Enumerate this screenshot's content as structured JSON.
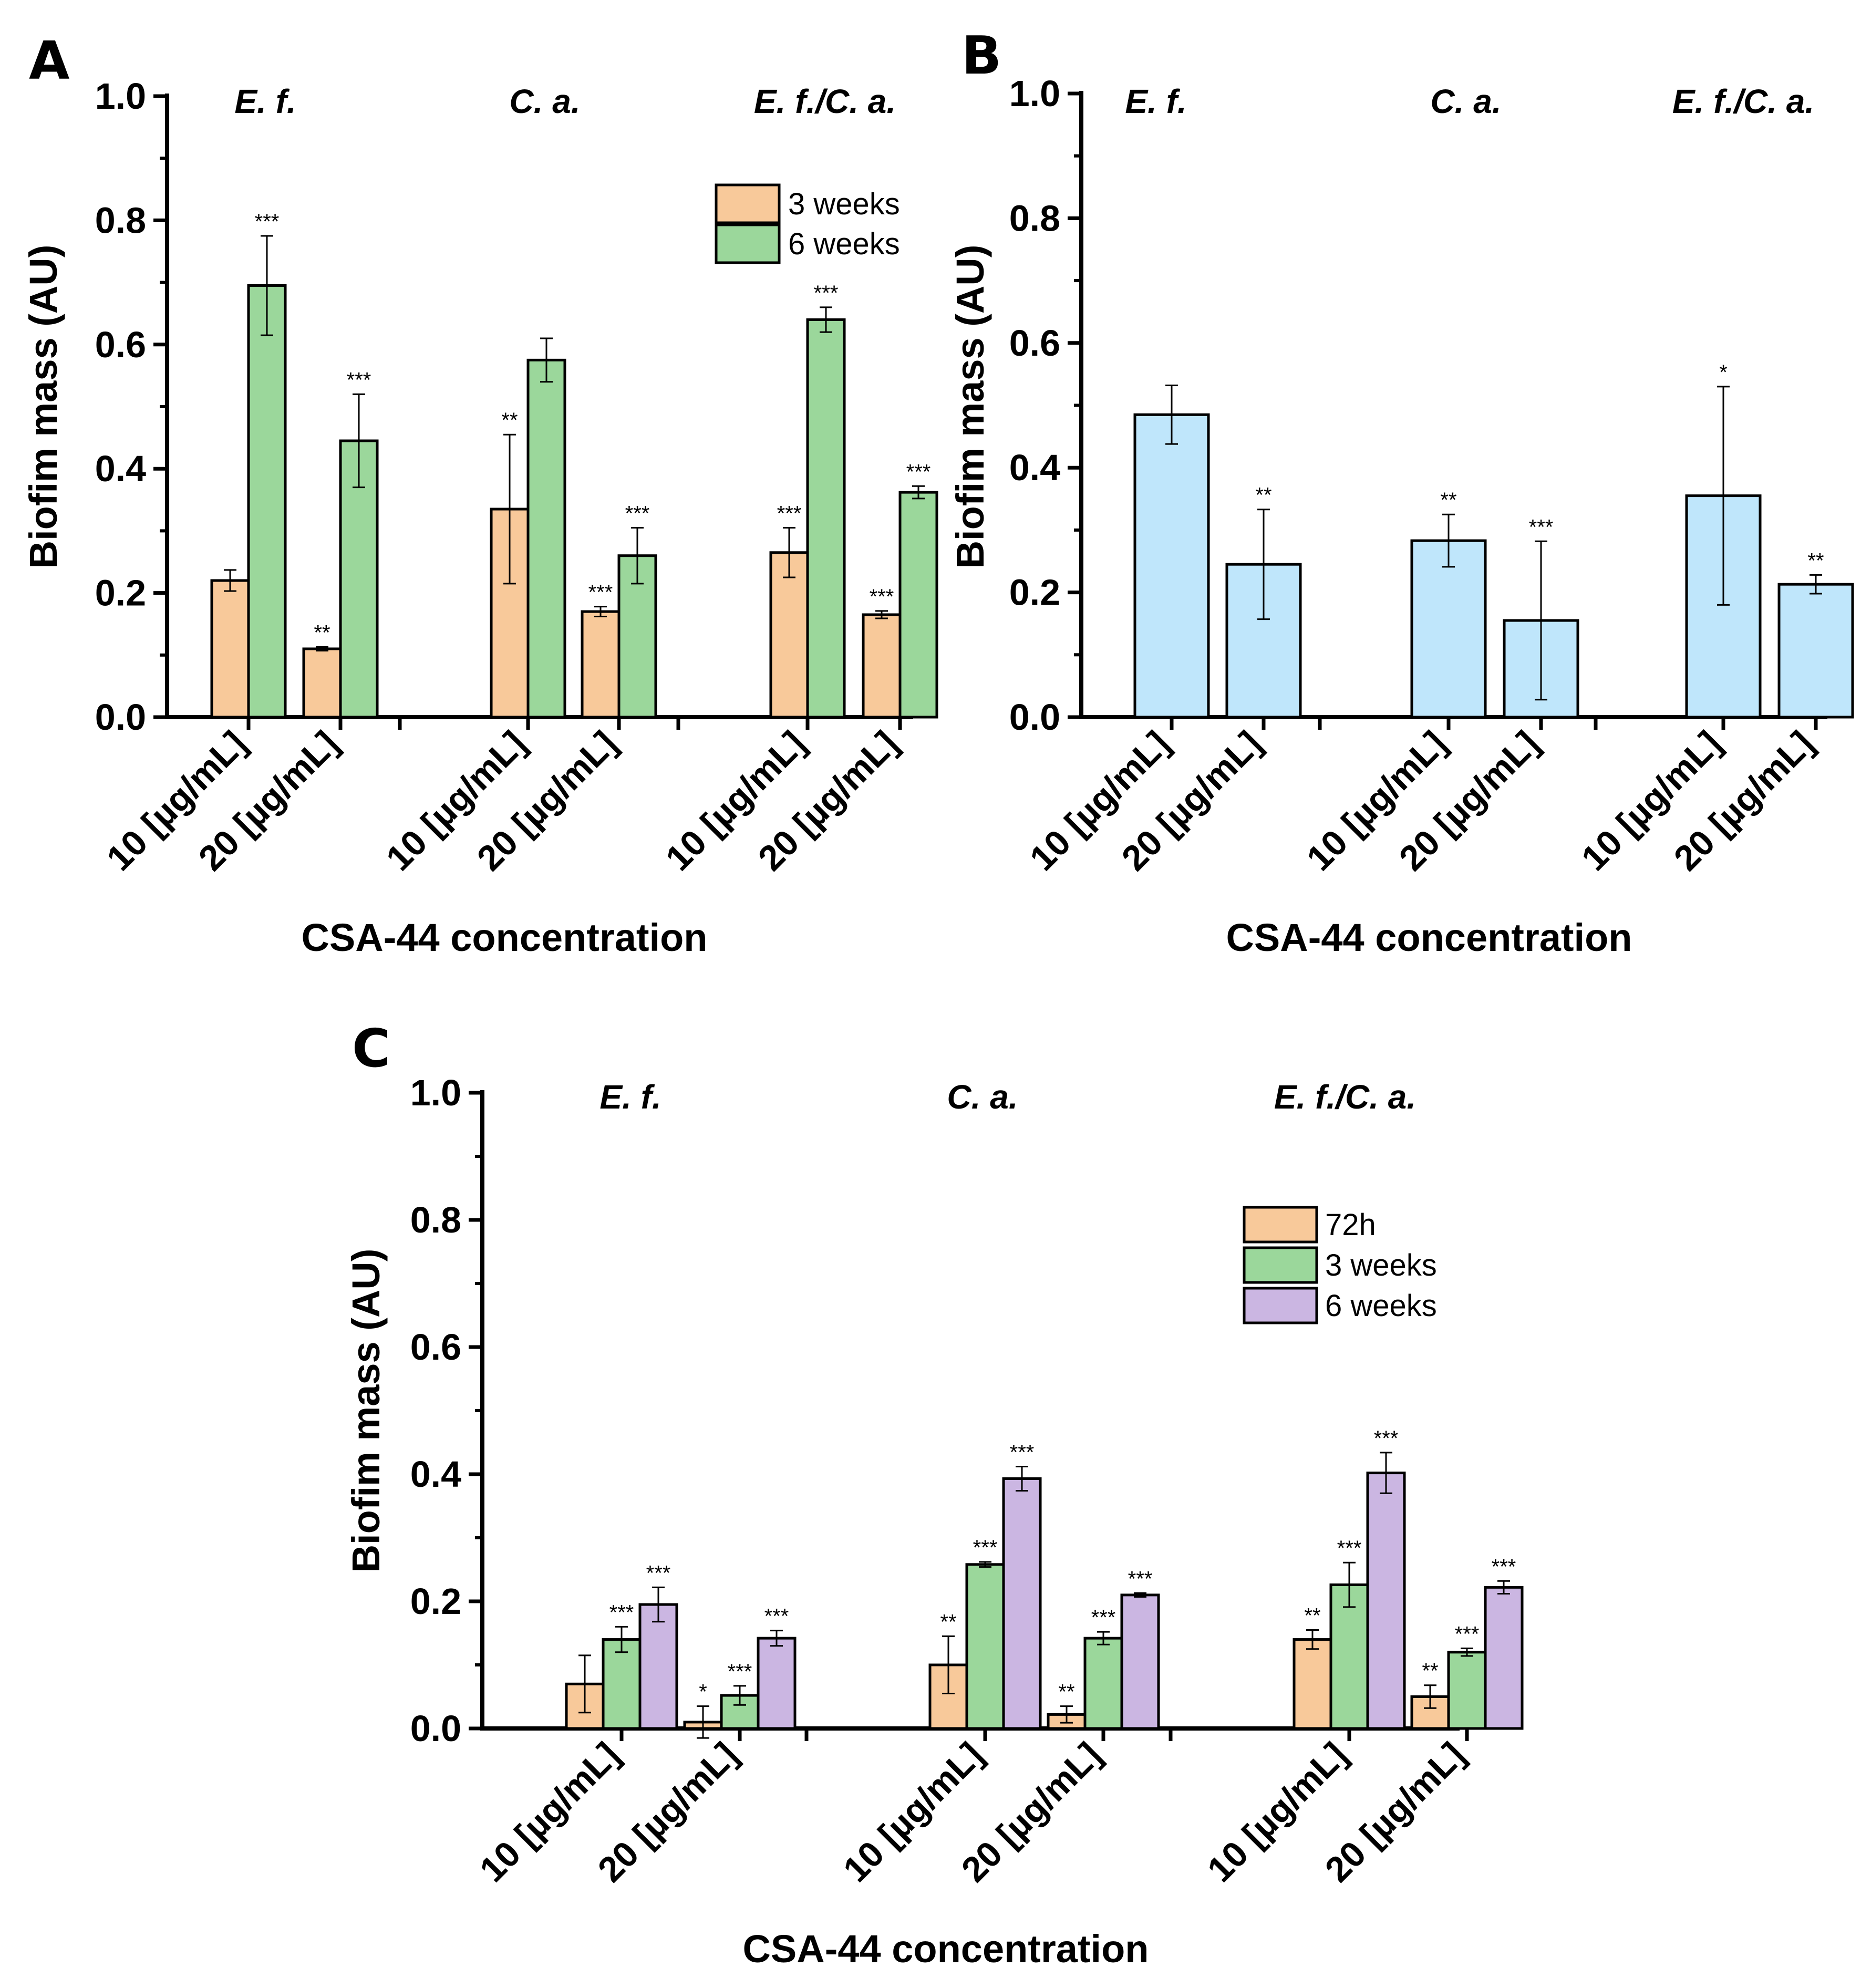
{
  "chart_data": [
    {
      "panel": "A",
      "type": "bar",
      "ylabel": "Biofim mass (AU)",
      "xlabel": "CSA-44 concentration",
      "ylim": [
        0,
        1.0
      ],
      "yticks": [
        "0.0",
        "0.2",
        "0.4",
        "0.6",
        "0.8",
        "1.0"
      ],
      "groups": [
        "E. f.",
        "C. a.",
        "E. f./C. a."
      ],
      "categories": [
        "10 [µg/mL]",
        "20 [µg/mL]",
        "10 [µg/mL]",
        "20 [µg/mL]",
        "10 [µg/mL]",
        "20 [µg/mL]"
      ],
      "legend_position": "top-right",
      "series": [
        {
          "name": "3 weeks",
          "color": "#f8c99a",
          "values": [
            0.22,
            0.11,
            0.335,
            0.17,
            0.265,
            0.165
          ],
          "errors": [
            0.017,
            0.003,
            0.12,
            0.008,
            0.04,
            0.006
          ],
          "significance": [
            "",
            "**",
            "**",
            "***",
            "***",
            "***"
          ]
        },
        {
          "name": "6 weeks",
          "color": "#9bd79b",
          "values": [
            0.695,
            0.445,
            0.575,
            0.26,
            0.64,
            0.362
          ],
          "errors": [
            0.08,
            0.075,
            0.035,
            0.045,
            0.02,
            0.01
          ],
          "significance": [
            "***",
            "***",
            "",
            "***",
            "***",
            "***"
          ]
        }
      ]
    },
    {
      "panel": "B",
      "type": "bar",
      "ylabel": "Biofim mass (AU)",
      "xlabel": "CSA-44 concentration",
      "ylim": [
        0,
        1.0
      ],
      "yticks": [
        "0.0",
        "0.2",
        "0.4",
        "0.6",
        "0.8",
        "1.0"
      ],
      "groups": [
        "E. f.",
        "C. a.",
        "E. f./C. a."
      ],
      "categories": [
        "10 [µg/mL]",
        "20 [µg/mL]",
        "10 [µg/mL]",
        "20 [µg/mL]",
        "10 [µg/mL]",
        "20 [µg/mL]"
      ],
      "series": [
        {
          "name": "",
          "color": "#bfe6fb",
          "values": [
            0.485,
            0.245,
            0.283,
            0.155,
            0.355,
            0.213
          ],
          "errors": [
            0.047,
            0.088,
            0.042,
            0.127,
            0.175,
            0.015
          ],
          "significance": [
            "",
            "**",
            "**",
            "***",
            "*",
            "**"
          ]
        }
      ]
    },
    {
      "panel": "C",
      "type": "bar",
      "ylabel": "Biofim mass (AU)",
      "xlabel": "CSA-44 concentration",
      "ylim": [
        0,
        1.0
      ],
      "yticks": [
        "0.0",
        "0.2",
        "0.4",
        "0.6",
        "0.8",
        "1.0"
      ],
      "groups": [
        "E. f.",
        "C. a.",
        "E. f./C. a."
      ],
      "categories": [
        "10 [µg/mL]",
        "20 [µg/mL]",
        "10 [µg/mL]",
        "20 [µg/mL]",
        "10 [µg/mL]",
        "20 [µg/mL]"
      ],
      "legend_position": "top-right",
      "series": [
        {
          "name": "72h",
          "color": "#f8c99a",
          "values": [
            0.07,
            0.01,
            0.1,
            0.022,
            0.14,
            0.05
          ],
          "errors": [
            0.045,
            0.025,
            0.045,
            0.013,
            0.015,
            0.018
          ],
          "significance": [
            "",
            "*",
            "**",
            "**",
            "**",
            "**"
          ]
        },
        {
          "name": "3 weeks",
          "color": "#9bd79b",
          "values": [
            0.14,
            0.052,
            0.258,
            0.142,
            0.226,
            0.12
          ],
          "errors": [
            0.02,
            0.015,
            0.004,
            0.01,
            0.035,
            0.006
          ],
          "significance": [
            "***",
            "***",
            "***",
            "***",
            "***",
            "***"
          ]
        },
        {
          "name": "6 weeks",
          "color": "#cbb6e2",
          "values": [
            0.195,
            0.142,
            0.393,
            0.21,
            0.402,
            0.222
          ],
          "errors": [
            0.027,
            0.012,
            0.019,
            0.003,
            0.032,
            0.01
          ],
          "significance": [
            "***",
            "***",
            "***",
            "***",
            "***",
            "***"
          ]
        }
      ]
    }
  ]
}
